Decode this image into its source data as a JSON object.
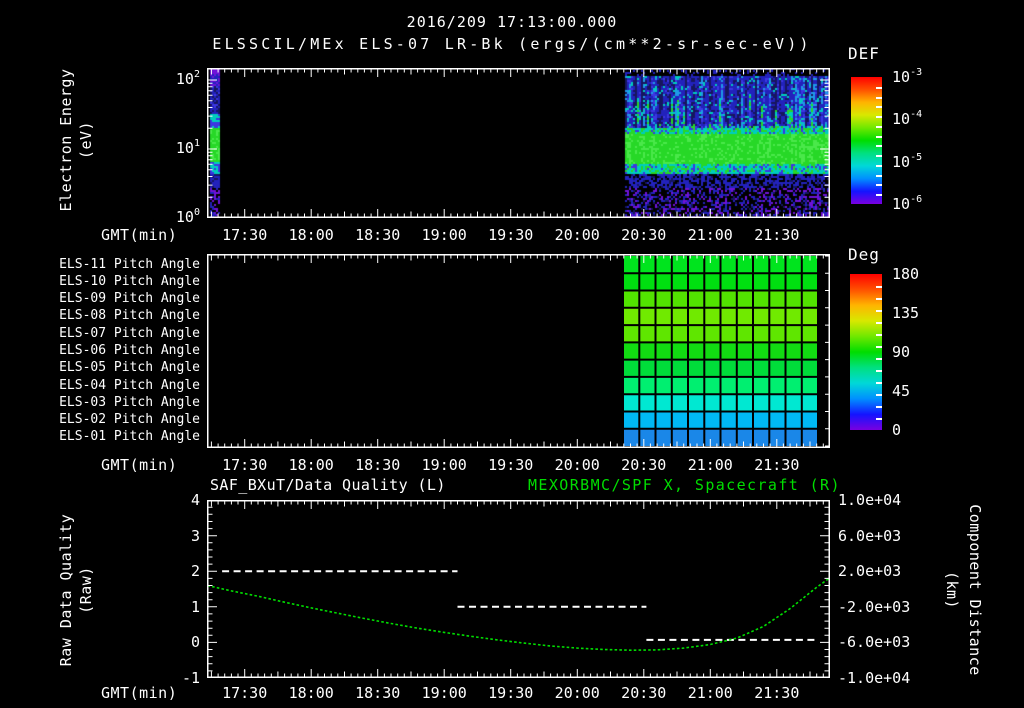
{
  "header": {
    "datetime": "2016/209 17:13:00.000",
    "title": "ELSSCIL/MEx ELS-07 LR-Bk  (ergs/(cm**2-sr-sec-eV))"
  },
  "time_axis": {
    "label": "GMT(min)",
    "tick_labels": [
      "17:30",
      "18:00",
      "18:30",
      "19:00",
      "19:30",
      "20:00",
      "20:30",
      "21:00",
      "21:30"
    ],
    "start_hour": 17.2167,
    "end_hour": 21.9
  },
  "spectrogram": {
    "ylabel_line1": "Electron Energy",
    "ylabel_line2": "(eV)",
    "ytick_labels": [
      "10^0",
      "10^1",
      "10^2"
    ],
    "colorbar_title": "DEF",
    "colorbar_labels": [
      "10^-3",
      "10^-4",
      "10^-5",
      "10^-6"
    ]
  },
  "pitch_panel": {
    "row_labels": [
      "ELS-11 Pitch Angle",
      "ELS-10 Pitch Angle",
      "ELS-09 Pitch Angle",
      "ELS-08 Pitch Angle",
      "ELS-07 Pitch Angle",
      "ELS-06 Pitch Angle",
      "ELS-05 Pitch Angle",
      "ELS-04 Pitch Angle",
      "ELS-03 Pitch Angle",
      "ELS-02 Pitch Angle",
      "ELS-01 Pitch Angle"
    ],
    "colorbar_title": "Deg",
    "colorbar_labels": [
      "180",
      "135",
      "90",
      "45",
      "0"
    ]
  },
  "bottom_panel": {
    "title_left": "SAF_BXuT/Data Quality (L)",
    "title_right": "MEXORBMC/SPF X, Spacecraft (R)",
    "ylabel_left_line1": "Raw Data Quality",
    "ylabel_left_line2": "(Raw)",
    "ylabel_right_line1": "Component Distance",
    "ylabel_right_line2": "(km)",
    "left_tick_labels": [
      "4",
      "3",
      "2",
      "1",
      "0",
      "-1"
    ],
    "right_tick_labels": [
      "1.0e+04",
      "6.0e+03",
      "2.0e+03",
      "-2.0e+03",
      "-6.0e+03",
      "-1.0e+04"
    ]
  },
  "colors": {
    "background": "#000000",
    "text": "#ffffff",
    "accent_green": "#00dd00",
    "rainbow": [
      "#7a00e0",
      "#1414ff",
      "#0090ff",
      "#00d8d8",
      "#00e080",
      "#00dd00",
      "#70e800",
      "#d8e800",
      "#ffb400",
      "#ff5000",
      "#ff0000"
    ],
    "pitch_rows": [
      "#00e41e",
      "#00df10",
      "#52e400",
      "#70ea00",
      "#5fe600",
      "#12dc12",
      "#00dd3a",
      "#00ef70",
      "#00e8d2",
      "#00b9f4",
      "#1a87e8"
    ],
    "spectro": {
      "purple": "#6f12d8",
      "blue_dark": "#16165e",
      "blue": "#2222bc",
      "blue_mid": "#3c36e2",
      "blue_light": "#1f9ae8",
      "cyan": "#00cdbd",
      "green": "#27d827",
      "green_bright": "#4ae84a"
    }
  },
  "chart_data": [
    {
      "type": "heatmap",
      "name": "electron-energy-spectrogram",
      "title": "ELSSCIL/MEx ELS-07 LR-Bk",
      "units": "ergs/(cm**2-sr-sec-eV)",
      "x_range_gmt": [
        "17:13",
        "21:54"
      ],
      "y_scale": "log",
      "y_range_eV": [
        1,
        150
      ],
      "colorbar": {
        "title": "DEF",
        "min": "1e-6",
        "max": "1e-3"
      },
      "data_intervals_gmt": [
        [
          "17:14",
          "17:19"
        ],
        [
          "20:21",
          "21:54"
        ]
      ],
      "features": [
        {
          "band_eV": [
            6,
            35
          ],
          "level": "~1e-4",
          "appearance": "bright green band"
        },
        {
          "band_eV": [
            35,
            150
          ],
          "level": "~3e-6 to 1e-5",
          "appearance": "blue with dark patches and cyan streaks"
        },
        {
          "band_eV": [
            1,
            5
          ],
          "level": "<1e-6",
          "appearance": "sparse purple/blue speckle noise"
        }
      ]
    },
    {
      "type": "heatmap",
      "name": "pitch-angle-panels",
      "rows_top_to_bottom": [
        "ELS-11",
        "ELS-10",
        "ELS-09",
        "ELS-08",
        "ELS-07",
        "ELS-06",
        "ELS-05",
        "ELS-04",
        "ELS-03",
        "ELS-02",
        "ELS-01"
      ],
      "colorbar": {
        "title": "Deg",
        "min": 0,
        "max": 180
      },
      "data_interval_gmt": [
        "20:21",
        "21:49"
      ],
      "data_interval_hours": [
        20.344,
        21.81
      ],
      "row_pitch_deg_top_to_bottom": [
        106,
        108,
        119,
        123,
        120,
        105,
        101,
        93,
        81,
        65,
        52
      ],
      "grid_columns": 12
    },
    {
      "type": "line",
      "name": "quality-and-spacecraft-x",
      "left_axis": {
        "label": "Raw Data Quality (Raw)",
        "min": -1,
        "max": 4,
        "ticks": [
          4,
          3,
          2,
          1,
          0,
          -1
        ]
      },
      "right_axis": {
        "label": "Component Distance (km)",
        "min": -10000,
        "max": 10000,
        "ticks": [
          10000,
          6000,
          2000,
          -2000,
          -6000,
          -10000
        ]
      },
      "series": [
        {
          "name": "SAF_BXuT/Data Quality (L)",
          "axis": "left",
          "color": "#ffffff",
          "style": "dashed",
          "units": "Raw",
          "segments": [
            {
              "t_start": 17.33,
              "t_end": 19.1,
              "value": 2
            },
            {
              "t_start": 19.1,
              "t_end": 20.52,
              "value": 1
            },
            {
              "t_start": 20.52,
              "t_end": 21.8,
              "value": 0.07
            }
          ]
        },
        {
          "name": "MEXORBMC/SPF X, Spacecraft (R)",
          "axis": "right",
          "color": "#00dd00",
          "style": "dotted",
          "units": "km",
          "t_hours": [
            17.22,
            17.4,
            17.6,
            17.8,
            18.0,
            18.2,
            18.4,
            18.6,
            18.8,
            19.0,
            19.2,
            19.4,
            19.6,
            19.8,
            20.0,
            20.2,
            20.4,
            20.6,
            20.8,
            21.0,
            21.2,
            21.4,
            21.6,
            21.8,
            21.9
          ],
          "values_km": [
            390,
            -210,
            -810,
            -1480,
            -2120,
            -2720,
            -3320,
            -3880,
            -4400,
            -4880,
            -5320,
            -5720,
            -6080,
            -6400,
            -6640,
            -6800,
            -6880,
            -6840,
            -6640,
            -6240,
            -5520,
            -4200,
            -2200,
            190,
            1270
          ]
        }
      ]
    }
  ]
}
